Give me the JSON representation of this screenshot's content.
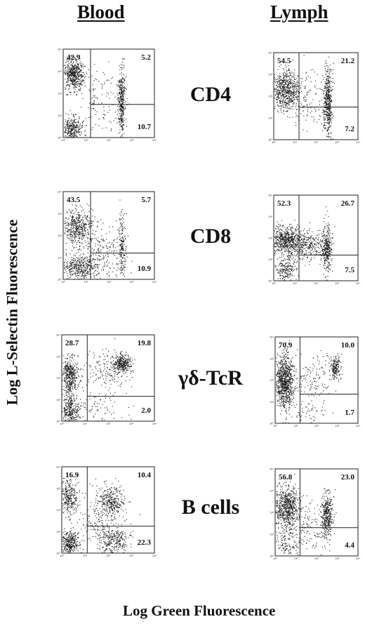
{
  "columns": [
    "Blood",
    "Lymph"
  ],
  "ylabel": "Log L-Selectin Fluorescence",
  "xlabel": "Log Green Fluorescence",
  "markers": [
    "CD4",
    "CD8",
    "γδ-TcR",
    "B cells"
  ],
  "axis_ticks": [
    "10⁰",
    "10¹",
    "10²",
    "10³",
    "10⁴"
  ],
  "chart_data": [
    {
      "type": "scatter",
      "column": "Blood",
      "marker": "CD4",
      "quadrants": {
        "upper_left": "42.9",
        "upper_right": "5.2",
        "lower_right": "10.7"
      },
      "gate": {
        "x": 1.2,
        "y": 1.5
      },
      "clusters": [
        {
          "x": 0.45,
          "y": 2.85,
          "n": 520,
          "sx": 0.22,
          "sy": 0.35
        },
        {
          "x": 0.4,
          "y": 0.45,
          "n": 300,
          "sx": 0.2,
          "sy": 0.25
        },
        {
          "x": 2.55,
          "y": 1.6,
          "n": 380,
          "sx": 0.08,
          "sy": 0.75
        },
        {
          "x": 1.6,
          "y": 1.5,
          "n": 110,
          "sx": 0.45,
          "sy": 0.8
        }
      ]
    },
    {
      "type": "scatter",
      "column": "Lymph",
      "marker": "CD4",
      "quadrants": {
        "upper_left": "54.5",
        "upper_right": "21.2",
        "lower_right": "7.2"
      },
      "gate": {
        "x": 1.2,
        "y": 1.5
      },
      "clusters": [
        {
          "x": 0.55,
          "y": 2.3,
          "n": 680,
          "sx": 0.35,
          "sy": 0.45
        },
        {
          "x": 2.55,
          "y": 1.7,
          "n": 480,
          "sx": 0.1,
          "sy": 0.85
        },
        {
          "x": 1.6,
          "y": 1.8,
          "n": 100,
          "sx": 0.45,
          "sy": 0.7
        }
      ]
    },
    {
      "type": "scatter",
      "column": "Blood",
      "marker": "CD8",
      "quadrants": {
        "upper_left": "43.5",
        "upper_right": "5.7",
        "lower_right": "10.9"
      },
      "gate": {
        "x": 1.2,
        "y": 1.2
      },
      "clusters": [
        {
          "x": 0.6,
          "y": 2.4,
          "n": 480,
          "sx": 0.35,
          "sy": 0.4
        },
        {
          "x": 0.7,
          "y": 0.55,
          "n": 380,
          "sx": 0.4,
          "sy": 0.3
        },
        {
          "x": 2.55,
          "y": 1.5,
          "n": 180,
          "sx": 0.09,
          "sy": 0.7
        },
        {
          "x": 1.6,
          "y": 1.1,
          "n": 240,
          "sx": 0.55,
          "sy": 0.8
        }
      ]
    },
    {
      "type": "scatter",
      "column": "Lymph",
      "marker": "CD8",
      "quadrants": {
        "upper_left": "52.3",
        "upper_right": "26.7",
        "lower_right": "7.5"
      },
      "gate": {
        "x": 1.2,
        "y": 1.2
      },
      "clusters": [
        {
          "x": 0.6,
          "y": 1.9,
          "n": 620,
          "sx": 0.4,
          "sy": 0.35
        },
        {
          "x": 0.55,
          "y": 0.55,
          "n": 200,
          "sx": 0.25,
          "sy": 0.3
        },
        {
          "x": 1.6,
          "y": 1.7,
          "n": 300,
          "sx": 0.5,
          "sy": 0.35
        },
        {
          "x": 2.5,
          "y": 1.5,
          "n": 320,
          "sx": 0.12,
          "sy": 0.55
        }
      ]
    },
    {
      "type": "scatter",
      "column": "Blood",
      "marker": "γδ-TcR",
      "quadrants": {
        "upper_left": "28.7",
        "upper_right": "19.8",
        "lower_right": "2.0"
      },
      "gate": {
        "x": 1.1,
        "y": 1.15
      },
      "clusters": [
        {
          "x": 0.35,
          "y": 2.1,
          "n": 420,
          "sx": 0.18,
          "sy": 0.45
        },
        {
          "x": 0.35,
          "y": 0.5,
          "n": 320,
          "sx": 0.2,
          "sy": 0.35
        },
        {
          "x": 2.6,
          "y": 2.7,
          "n": 320,
          "sx": 0.2,
          "sy": 0.2
        },
        {
          "x": 1.8,
          "y": 2.3,
          "n": 160,
          "sx": 0.5,
          "sy": 0.45
        },
        {
          "x": 1.5,
          "y": 0.6,
          "n": 80,
          "sx": 0.6,
          "sy": 0.4
        }
      ]
    },
    {
      "type": "scatter",
      "column": "Lymph",
      "marker": "γδ-TcR",
      "quadrants": {
        "upper_left": "70.9",
        "upper_right": "10.0",
        "lower_right": "1.7"
      },
      "gate": {
        "x": 1.2,
        "y": 1.35
      },
      "clusters": [
        {
          "x": 0.45,
          "y": 1.9,
          "n": 880,
          "sx": 0.22,
          "sy": 0.65
        },
        {
          "x": 2.9,
          "y": 2.6,
          "n": 180,
          "sx": 0.12,
          "sy": 0.3
        },
        {
          "x": 1.8,
          "y": 2.2,
          "n": 130,
          "sx": 0.6,
          "sy": 0.55
        },
        {
          "x": 1.4,
          "y": 0.5,
          "n": 60,
          "sx": 0.5,
          "sy": 0.3
        }
      ]
    },
    {
      "type": "scatter",
      "column": "Blood",
      "marker": "B cells",
      "quadrants": {
        "upper_left": "16.9",
        "upper_right": "10.4",
        "lower_right": "22.3"
      },
      "gate": {
        "x": 1.1,
        "y": 1.25
      },
      "clusters": [
        {
          "x": 0.3,
          "y": 2.6,
          "n": 300,
          "sx": 0.18,
          "sy": 0.4
        },
        {
          "x": 0.35,
          "y": 0.5,
          "n": 320,
          "sx": 0.2,
          "sy": 0.3
        },
        {
          "x": 2.1,
          "y": 2.4,
          "n": 330,
          "sx": 0.28,
          "sy": 0.35
        },
        {
          "x": 2.2,
          "y": 0.55,
          "n": 300,
          "sx": 0.35,
          "sy": 0.35
        },
        {
          "x": 1.5,
          "y": 1.4,
          "n": 150,
          "sx": 0.6,
          "sy": 0.6
        }
      ]
    },
    {
      "type": "scatter",
      "column": "Lymph",
      "marker": "B cells",
      "quadrants": {
        "upper_left": "56.8",
        "upper_right": "23.0",
        "lower_right": "4.4"
      },
      "gate": {
        "x": 1.2,
        "y": 1.3
      },
      "clusters": [
        {
          "x": 0.55,
          "y": 2.2,
          "n": 700,
          "sx": 0.3,
          "sy": 0.5
        },
        {
          "x": 2.5,
          "y": 1.9,
          "n": 380,
          "sx": 0.15,
          "sy": 0.55
        },
        {
          "x": 0.6,
          "y": 0.5,
          "n": 120,
          "sx": 0.3,
          "sy": 0.3
        },
        {
          "x": 1.6,
          "y": 1.4,
          "n": 120,
          "sx": 0.5,
          "sy": 0.6
        }
      ]
    }
  ]
}
